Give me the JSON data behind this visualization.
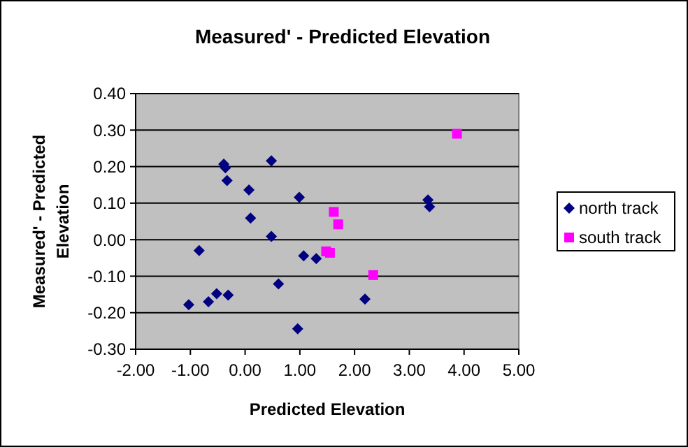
{
  "chart_data": {
    "type": "scatter",
    "title": "Measured' - Predicted Elevation",
    "xlabel": "Predicted Elevation",
    "ylabel": "Measured' - Predicted Elevation",
    "xlim": [
      -2,
      5
    ],
    "xticks": [
      {
        "value": -2,
        "label": "-2.00"
      },
      {
        "value": -1,
        "label": "-1.00"
      },
      {
        "value": 0,
        "label": "0.00"
      },
      {
        "value": 1,
        "label": "1.00"
      },
      {
        "value": 2,
        "label": "2.00"
      },
      {
        "value": 3,
        "label": "3.00"
      },
      {
        "value": 4,
        "label": "4.00"
      },
      {
        "value": 5,
        "label": "5.00"
      }
    ],
    "ylim": [
      -0.3,
      0.4
    ],
    "yticks": [
      {
        "value": -0.3,
        "label": "-0.30"
      },
      {
        "value": -0.2,
        "label": "-0.20"
      },
      {
        "value": -0.1,
        "label": "-0.10"
      },
      {
        "value": 0,
        "label": "0.00"
      },
      {
        "value": 0.1,
        "label": "0.10"
      },
      {
        "value": 0.2,
        "label": "0.20"
      },
      {
        "value": 0.3,
        "label": "0.30"
      },
      {
        "value": 0.4,
        "label": "0.40"
      }
    ],
    "grid": "y",
    "legend": "right",
    "series": [
      {
        "name": "north track",
        "color": "#000080",
        "marker": "diamond",
        "x": [
          -1.03,
          -0.84,
          -0.67,
          -0.52,
          -0.31,
          -0.39,
          -0.36,
          -0.33,
          0.07,
          0.1,
          0.48,
          0.48,
          0.61,
          0.99,
          0.96,
          1.07,
          1.3,
          2.19,
          3.34,
          3.37
        ],
        "values": [
          -0.178,
          -0.03,
          -0.17,
          -0.148,
          -0.152,
          0.207,
          0.197,
          0.162,
          0.136,
          0.059,
          0.216,
          0.009,
          -0.121,
          0.116,
          -0.244,
          -0.044,
          -0.052,
          -0.163,
          0.109,
          0.09
        ]
      },
      {
        "name": "south track",
        "color": "#ff00ff",
        "marker": "square",
        "x": [
          3.87,
          1.62,
          1.7,
          1.48,
          1.55,
          2.34
        ],
        "values": [
          0.29,
          0.076,
          0.042,
          -0.032,
          -0.036,
          -0.097
        ]
      }
    ]
  }
}
